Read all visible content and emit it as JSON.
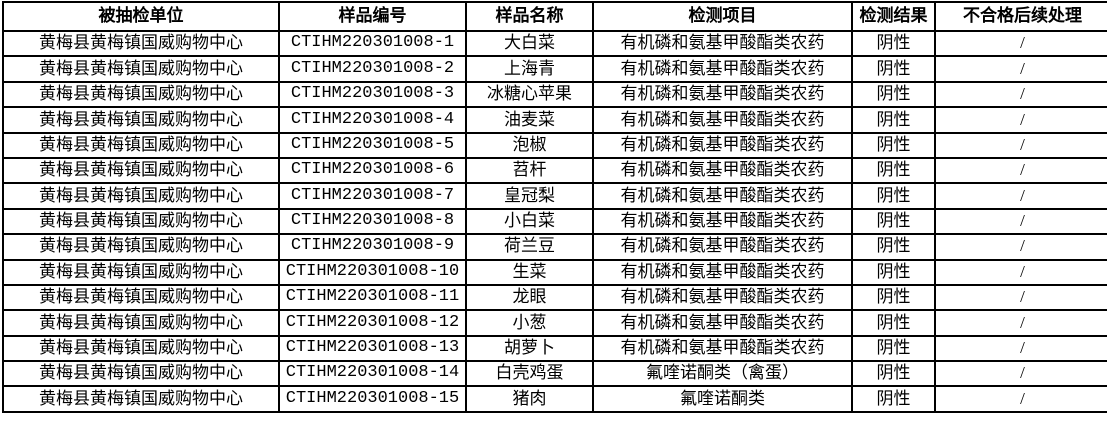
{
  "colors": {
    "border": "#000000",
    "text": "#000000",
    "background": "#ffffff"
  },
  "table": {
    "columns": [
      {
        "key": "sampled-unit",
        "label": "被抽检单位"
      },
      {
        "key": "sample-id",
        "label": "样品编号"
      },
      {
        "key": "sample-name",
        "label": "样品名称"
      },
      {
        "key": "test-item",
        "label": "检测项目"
      },
      {
        "key": "test-result",
        "label": "检测结果"
      },
      {
        "key": "followup-handling",
        "label": "不合格后续处理"
      }
    ],
    "rows": [
      [
        "黄梅县黄梅镇国威购物中心",
        "CTIHM220301008-1",
        "大白菜",
        "有机磷和氨基甲酸酯类农药",
        "阴性",
        "/"
      ],
      [
        "黄梅县黄梅镇国威购物中心",
        "CTIHM220301008-2",
        "上海青",
        "有机磷和氨基甲酸酯类农药",
        "阴性",
        "/"
      ],
      [
        "黄梅县黄梅镇国威购物中心",
        "CTIHM220301008-3",
        "冰糖心苹果",
        "有机磷和氨基甲酸酯类农药",
        "阴性",
        "/"
      ],
      [
        "黄梅县黄梅镇国威购物中心",
        "CTIHM220301008-4",
        "油麦菜",
        "有机磷和氨基甲酸酯类农药",
        "阴性",
        "/"
      ],
      [
        "黄梅县黄梅镇国威购物中心",
        "CTIHM220301008-5",
        "泡椒",
        "有机磷和氨基甲酸酯类农药",
        "阴性",
        "/"
      ],
      [
        "黄梅县黄梅镇国威购物中心",
        "CTIHM220301008-6",
        "苕杆",
        "有机磷和氨基甲酸酯类农药",
        "阴性",
        "/"
      ],
      [
        "黄梅县黄梅镇国威购物中心",
        "CTIHM220301008-7",
        "皇冠梨",
        "有机磷和氨基甲酸酯类农药",
        "阴性",
        "/"
      ],
      [
        "黄梅县黄梅镇国威购物中心",
        "CTIHM220301008-8",
        "小白菜",
        "有机磷和氨基甲酸酯类农药",
        "阴性",
        "/"
      ],
      [
        "黄梅县黄梅镇国威购物中心",
        "CTIHM220301008-9",
        "荷兰豆",
        "有机磷和氨基甲酸酯类农药",
        "阴性",
        "/"
      ],
      [
        "黄梅县黄梅镇国威购物中心",
        "CTIHM220301008-10",
        "生菜",
        "有机磷和氨基甲酸酯类农药",
        "阴性",
        "/"
      ],
      [
        "黄梅县黄梅镇国威购物中心",
        "CTIHM220301008-11",
        "龙眼",
        "有机磷和氨基甲酸酯类农药",
        "阴性",
        "/"
      ],
      [
        "黄梅县黄梅镇国威购物中心",
        "CTIHM220301008-12",
        "小葱",
        "有机磷和氨基甲酸酯类农药",
        "阴性",
        "/"
      ],
      [
        "黄梅县黄梅镇国威购物中心",
        "CTIHM220301008-13",
        "胡萝卜",
        "有机磷和氨基甲酸酯类农药",
        "阴性",
        "/"
      ],
      [
        "黄梅县黄梅镇国威购物中心",
        "CTIHM220301008-14",
        "白壳鸡蛋",
        "氟喹诺酮类（禽蛋）",
        "阴性",
        "/"
      ],
      [
        "黄梅县黄梅镇国威购物中心",
        "CTIHM220301008-15",
        "猪肉",
        "氟喹诺酮类",
        "阴性",
        "/"
      ]
    ]
  }
}
